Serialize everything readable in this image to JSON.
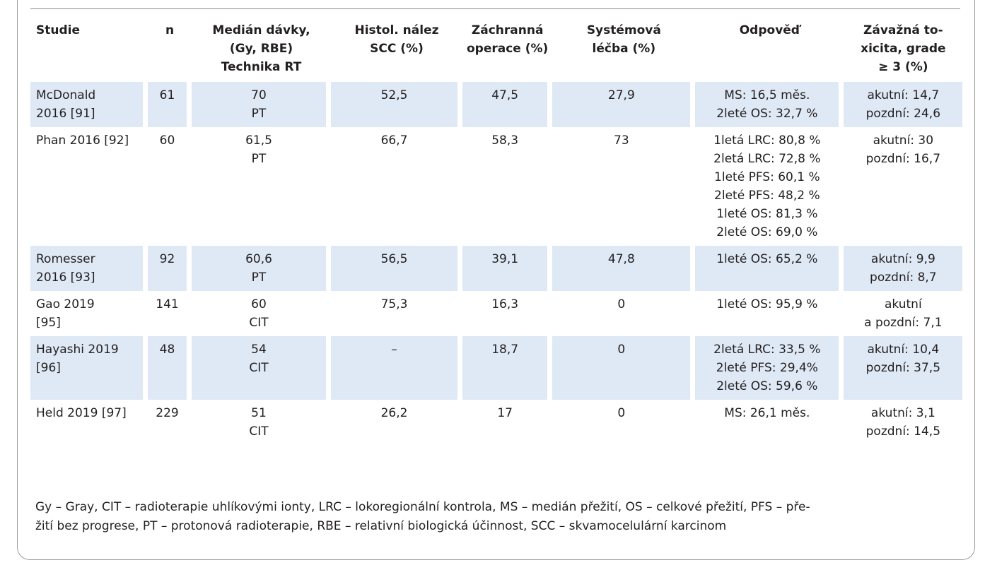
{
  "table": {
    "headers": [
      [
        "Studie"
      ],
      [
        "n"
      ],
      [
        "Medián dávky,",
        "(Gy, RBE)",
        "Technika RT"
      ],
      [
        "Histol. nález",
        "SCC (%)"
      ],
      [
        "Záchranná",
        "operace (%)"
      ],
      [
        "Systémová",
        "léčba (%)"
      ],
      [
        "Odpověď"
      ],
      [
        "Závažná to-",
        "xicita, grade",
        "≥ 3 (%)"
      ]
    ],
    "rows": [
      {
        "shaded": true,
        "study": [
          "McDonald",
          "2016 [91]"
        ],
        "n": "61",
        "dose": [
          "70",
          "PT"
        ],
        "scc": "52,5",
        "surgery": "47,5",
        "systemic": "27,9",
        "response": [
          "MS: 16,5 měs.",
          "2leté OS: 32,7 %"
        ],
        "toxicity": [
          "akutní: 14,7",
          "pozdní: 24,6"
        ]
      },
      {
        "shaded": false,
        "study": [
          "Phan 2016 [92]"
        ],
        "n": "60",
        "dose": [
          "61,5",
          "PT"
        ],
        "scc": "66,7",
        "surgery": "58,3",
        "systemic": "73",
        "response": [
          "1letá LRC: 80,8 %",
          "2letá LRC: 72,8 %",
          "1leté PFS: 60,1 %",
          "2leté PFS: 48,2 %",
          "1leté OS: 81,3 %",
          "2leté OS: 69,0 %"
        ],
        "toxicity": [
          "akutní: 30",
          "pozdní: 16,7"
        ]
      },
      {
        "shaded": true,
        "study": [
          "Romesser",
          "2016 [93]"
        ],
        "n": "92",
        "dose": [
          "60,6",
          "PT"
        ],
        "scc": "56,5",
        "surgery": "39,1",
        "systemic": "47,8",
        "response": [
          "1leté OS: 65,2 %"
        ],
        "toxicity": [
          "akutní: 9,9",
          "pozdní: 8,7"
        ]
      },
      {
        "shaded": false,
        "study": [
          "Gao 2019",
          "[95]"
        ],
        "n": "141",
        "dose": [
          "60",
          "CIT"
        ],
        "scc": "75,3",
        "surgery": "16,3",
        "systemic": "0",
        "response": [
          "1leté OS: 95,9 %"
        ],
        "toxicity": [
          "akutní",
          "a pozdní: 7,1"
        ]
      },
      {
        "shaded": true,
        "study": [
          "Hayashi 2019",
          "[96]"
        ],
        "n": "48",
        "dose": [
          "54",
          "CIT"
        ],
        "scc": "–",
        "surgery": "18,7",
        "systemic": "0",
        "response": [
          "2letá LRC: 33,5 %",
          "2leté PFS: 29,4%",
          "2leté OS: 59,6 %"
        ],
        "toxicity": [
          "akutní: 10,4",
          "pozdní: 37,5"
        ]
      },
      {
        "shaded": false,
        "study": [
          "Held 2019 [97]"
        ],
        "n": "229",
        "dose": [
          "51",
          "CIT"
        ],
        "scc": "26,2",
        "surgery": "17",
        "systemic": "0",
        "response": [
          "MS: 26,1 měs."
        ],
        "toxicity": [
          "akutní: 3,1",
          "pozdní: 14,5"
        ]
      }
    ]
  },
  "footnote": [
    "Gy – Gray, CIT – radioterapie uhlíkovými ionty, LRC – lokoregionální kontrola, MS – medián přežití, OS – celkové přežití, PFS – pře-",
    "žití bez progrese, PT – protonová radioterapie, RBE – relativní biologická účinnost, SCC – skvamocelulární karcinom"
  ]
}
